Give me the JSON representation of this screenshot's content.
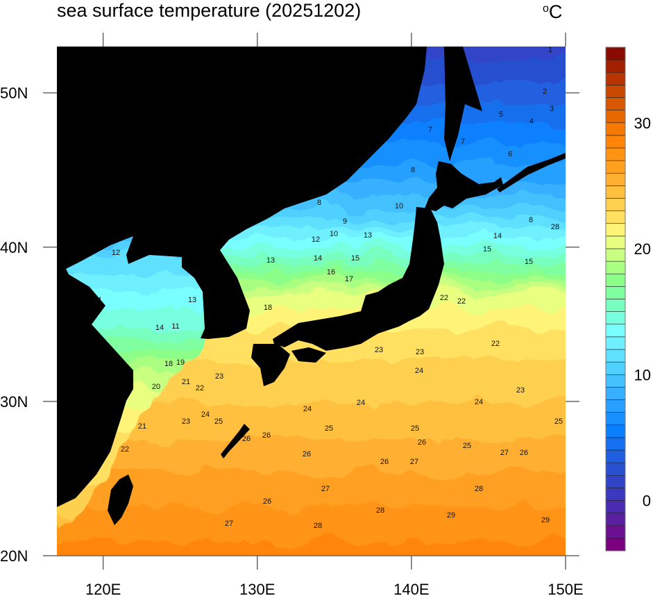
{
  "title": "sea surface temperature (20251202)",
  "unit": "°C",
  "unit_parts": {
    "degree": "o",
    "letter": "C"
  },
  "map": {
    "region": {
      "lon_range": [
        117,
        150
      ],
      "lat_range": [
        20,
        53
      ]
    },
    "lon_ticks": [
      "120E",
      "130E",
      "140E",
      "150E"
    ],
    "lat_ticks": [
      "50N",
      "40N",
      "30N",
      "20N"
    ],
    "land_color": "#000000",
    "contour_interval": 1,
    "contour_labels": [
      "1",
      "2",
      "3",
      "4",
      "5",
      "6",
      "7",
      "7",
      "8",
      "8",
      "9",
      "10",
      "10",
      "12",
      "13",
      "13",
      "14",
      "15",
      "16",
      "17",
      "18",
      "18",
      "19",
      "20",
      "21",
      "22",
      "23",
      "23",
      "24",
      "25",
      "26",
      "21",
      "22",
      "23",
      "23",
      "22",
      "22",
      "22",
      "24",
      "24",
      "24",
      "23",
      "24",
      "25",
      "25",
      "25",
      "26",
      "26",
      "26",
      "26",
      "27",
      "27",
      "27",
      "28",
      "28",
      "28",
      "29",
      "29",
      "26",
      "14",
      "15",
      "15",
      "25",
      "26",
      "27",
      "14",
      "14",
      "11",
      "12",
      "13",
      "8",
      "28"
    ]
  },
  "colorbar": {
    "min": -4,
    "max": 36,
    "tick_labels": [
      "0",
      "10",
      "20",
      "30"
    ],
    "tick_values": [
      0,
      10,
      20,
      30
    ],
    "colors": [
      "#7a0080",
      "#6a1090",
      "#5a20a0",
      "#4a2cb0",
      "#3c38c0",
      "#3044c8",
      "#2850d0",
      "#2060e0",
      "#1470ee",
      "#0a80ff",
      "#1890ff",
      "#28a0ff",
      "#38b0ff",
      "#44c0ff",
      "#50d0ff",
      "#60e0ff",
      "#70f0ff",
      "#7affff",
      "#78ffe0",
      "#78ffc0",
      "#80ffa0",
      "#8cff88",
      "#a8ff80",
      "#c8ff80",
      "#e8ff80",
      "#fff478",
      "#ffe060",
      "#ffd050",
      "#ffc040",
      "#ffb030",
      "#ffa020",
      "#ff9414",
      "#ff8508",
      "#f57800",
      "#e86800",
      "#d85800",
      "#c84800",
      "#b83400",
      "#a22000",
      "#8a0c00"
    ]
  }
}
